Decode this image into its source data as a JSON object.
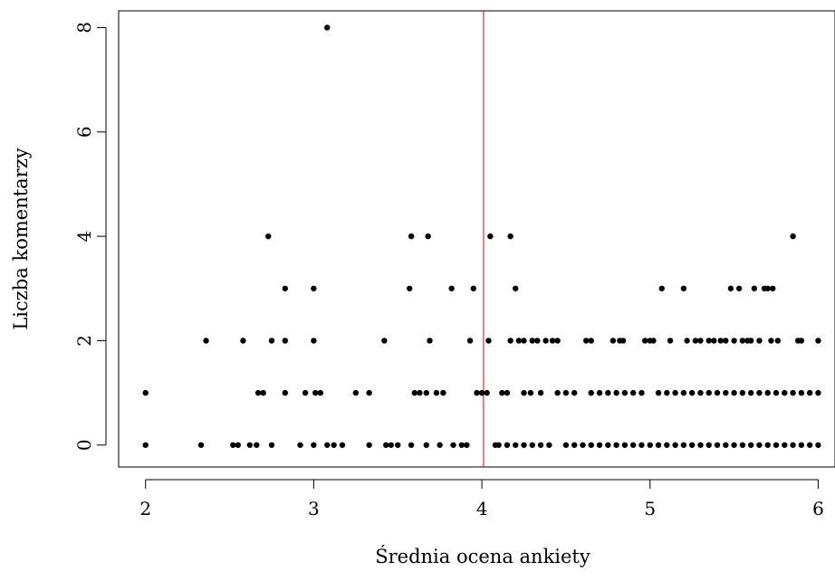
{
  "chart_data": {
    "type": "scatter",
    "title": "",
    "xlabel": "Średnia ocena ankiety",
    "ylabel": "Liczba komentarzy",
    "xlim": [
      1.84,
      6.1
    ],
    "ylim": [
      -0.42,
      8.32
    ],
    "x_ticks": [
      "2",
      "3",
      "4",
      "5",
      "6"
    ],
    "y_ticks": [
      "0",
      "2",
      "4",
      "6",
      "8"
    ],
    "grid": false,
    "legend": "none",
    "point_color": "#000000",
    "vline": {
      "x": 4.01,
      "color": "#ff0000"
    },
    "series": [
      {
        "values": [
          [
            2.0,
            0
          ],
          [
            2.0,
            1
          ],
          [
            2.33,
            0
          ],
          [
            2.36,
            2
          ],
          [
            2.52,
            0
          ],
          [
            2.55,
            0
          ],
          [
            2.58,
            2
          ],
          [
            2.62,
            0
          ],
          [
            2.66,
            0
          ],
          [
            2.67,
            1
          ],
          [
            2.7,
            1
          ],
          [
            2.73,
            4
          ],
          [
            2.75,
            2
          ],
          [
            2.75,
            0
          ],
          [
            2.83,
            3
          ],
          [
            2.83,
            2
          ],
          [
            2.83,
            1
          ],
          [
            2.92,
            0
          ],
          [
            2.95,
            1
          ],
          [
            3.0,
            3
          ],
          [
            3.0,
            2
          ],
          [
            3.0,
            0
          ],
          [
            3.01,
            1
          ],
          [
            3.04,
            1
          ],
          [
            3.08,
            8
          ],
          [
            3.08,
            0
          ],
          [
            3.12,
            0
          ],
          [
            3.17,
            0
          ],
          [
            3.25,
            1
          ],
          [
            3.33,
            1
          ],
          [
            3.33,
            0
          ],
          [
            3.42,
            2
          ],
          [
            3.43,
            0
          ],
          [
            3.46,
            0
          ],
          [
            3.5,
            0
          ],
          [
            3.57,
            3
          ],
          [
            3.58,
            4
          ],
          [
            3.58,
            0
          ],
          [
            3.6,
            1
          ],
          [
            3.63,
            1
          ],
          [
            3.67,
            1
          ],
          [
            3.67,
            0
          ],
          [
            3.68,
            4
          ],
          [
            3.69,
            2
          ],
          [
            3.73,
            1
          ],
          [
            3.75,
            0
          ],
          [
            3.77,
            1
          ],
          [
            3.82,
            3
          ],
          [
            3.83,
            0
          ],
          [
            3.88,
            0
          ],
          [
            3.91,
            0
          ],
          [
            3.93,
            2
          ],
          [
            3.95,
            3
          ],
          [
            3.97,
            1
          ],
          [
            4.0,
            1
          ],
          [
            4.03,
            1
          ],
          [
            4.04,
            2
          ],
          [
            4.05,
            4
          ],
          [
            4.08,
            0
          ],
          [
            4.12,
            1
          ],
          [
            4.15,
            1
          ],
          [
            4.17,
            2
          ],
          [
            4.17,
            4
          ],
          [
            4.2,
            3
          ],
          [
            4.22,
            2
          ],
          [
            4.25,
            1
          ],
          [
            4.25,
            2
          ],
          [
            4.29,
            1
          ],
          [
            4.3,
            2
          ],
          [
            4.33,
            2
          ],
          [
            4.35,
            1
          ],
          [
            4.38,
            2
          ],
          [
            4.42,
            2
          ],
          [
            4.45,
            1
          ],
          [
            4.45,
            2
          ],
          [
            4.5,
            1
          ],
          [
            4.55,
            1
          ],
          [
            4.62,
            2
          ],
          [
            4.65,
            2
          ],
          [
            4.65,
            1
          ],
          [
            4.75,
            1
          ],
          [
            4.78,
            2
          ],
          [
            4.82,
            2
          ],
          [
            4.84,
            2
          ],
          [
            4.9,
            1
          ],
          [
            4.95,
            1
          ],
          [
            4.97,
            2
          ],
          [
            5.0,
            2
          ],
          [
            5.02,
            2
          ],
          [
            5.07,
            3
          ],
          [
            5.1,
            1
          ],
          [
            5.12,
            2
          ],
          [
            5.2,
            3
          ],
          [
            5.22,
            2
          ],
          [
            5.27,
            2
          ],
          [
            5.3,
            2
          ],
          [
            5.35,
            2
          ],
          [
            5.38,
            2
          ],
          [
            5.42,
            2
          ],
          [
            5.45,
            2
          ],
          [
            5.48,
            3
          ],
          [
            5.5,
            2
          ],
          [
            5.53,
            3
          ],
          [
            5.55,
            2
          ],
          [
            5.58,
            2
          ],
          [
            5.6,
            2
          ],
          [
            5.62,
            3
          ],
          [
            5.65,
            2
          ],
          [
            5.68,
            3
          ],
          [
            5.7,
            3
          ],
          [
            5.72,
            2
          ],
          [
            5.73,
            3
          ],
          [
            5.76,
            2
          ],
          [
            5.85,
            4
          ],
          [
            5.88,
            2
          ],
          [
            5.9,
            2
          ],
          [
            5.95,
            1
          ],
          [
            6.0,
            2
          ],
          [
            6.0,
            1
          ],
          [
            6.0,
            0
          ],
          [
            4.1,
            0
          ],
          [
            4.15,
            0
          ],
          [
            4.2,
            0
          ],
          [
            4.25,
            0
          ],
          [
            4.3,
            0
          ],
          [
            4.35,
            0
          ],
          [
            4.4,
            0
          ],
          [
            4.5,
            0
          ],
          [
            4.55,
            0
          ],
          [
            4.6,
            0
          ],
          [
            4.65,
            0
          ],
          [
            4.7,
            0
          ],
          [
            4.75,
            0
          ],
          [
            4.8,
            0
          ],
          [
            4.85,
            0
          ],
          [
            4.9,
            0
          ],
          [
            4.95,
            0
          ],
          [
            5.0,
            0
          ],
          [
            5.05,
            0
          ],
          [
            5.1,
            0
          ],
          [
            5.15,
            0
          ],
          [
            5.2,
            0
          ],
          [
            5.25,
            0
          ],
          [
            5.3,
            0
          ],
          [
            5.35,
            0
          ],
          [
            5.4,
            0
          ],
          [
            5.45,
            0
          ],
          [
            5.5,
            0
          ],
          [
            5.55,
            0
          ],
          [
            5.6,
            0
          ],
          [
            5.65,
            0
          ],
          [
            5.7,
            0
          ],
          [
            5.75,
            0
          ],
          [
            5.8,
            0
          ],
          [
            5.85,
            0
          ],
          [
            5.9,
            0
          ],
          [
            5.95,
            0
          ],
          [
            4.7,
            1
          ],
          [
            4.8,
            1
          ],
          [
            4.85,
            1
          ],
          [
            5.05,
            1
          ],
          [
            5.15,
            1
          ],
          [
            5.2,
            1
          ],
          [
            5.25,
            1
          ],
          [
            5.3,
            1
          ],
          [
            5.35,
            1
          ],
          [
            5.4,
            1
          ],
          [
            5.45,
            1
          ],
          [
            5.5,
            1
          ],
          [
            5.55,
            1
          ],
          [
            5.6,
            1
          ],
          [
            5.65,
            1
          ],
          [
            5.7,
            1
          ],
          [
            5.75,
            1
          ],
          [
            5.8,
            1
          ],
          [
            5.85,
            1
          ],
          [
            5.9,
            1
          ]
        ]
      }
    ]
  }
}
